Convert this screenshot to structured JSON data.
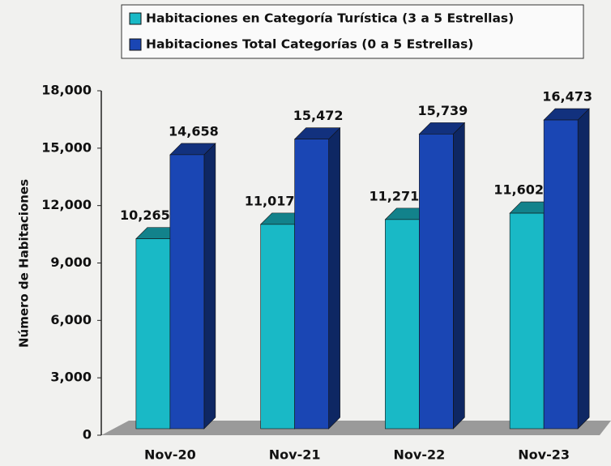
{
  "chart_data": {
    "type": "bar3d",
    "ylabel": "Número de Habitaciones",
    "categories": [
      "Nov-20",
      "Nov-21",
      "Nov-22",
      "Nov-23"
    ],
    "series": [
      {
        "name": "Habitaciones en Categoría Turística (3 a 5 Estrellas)",
        "color": "#19b9c6",
        "values": [
          10265,
          11017,
          11271,
          11602
        ],
        "value_labels": [
          "10,265",
          "11,017",
          "11,271",
          "11,602"
        ]
      },
      {
        "name": "Habitaciones Total Categorías (0 a 5 Estrellas)",
        "color": "#1a46b4",
        "values": [
          14658,
          15472,
          15739,
          16473
        ],
        "value_labels": [
          "14,658",
          "15,472",
          "15,739",
          "16,473"
        ]
      }
    ],
    "ylim": [
      0,
      18000
    ],
    "yticks": [
      0,
      {
        "value": 3000,
        "label": "3,000"
      },
      {
        "value": 6000,
        "label": "6,000"
      },
      {
        "value": 9000,
        "label": "9,000"
      },
      {
        "value": 12000,
        "label": "12,000"
      },
      {
        "value": 15000,
        "label": "15,000"
      },
      {
        "value": 18000,
        "label": "18,000"
      }
    ],
    "legend": "top"
  }
}
